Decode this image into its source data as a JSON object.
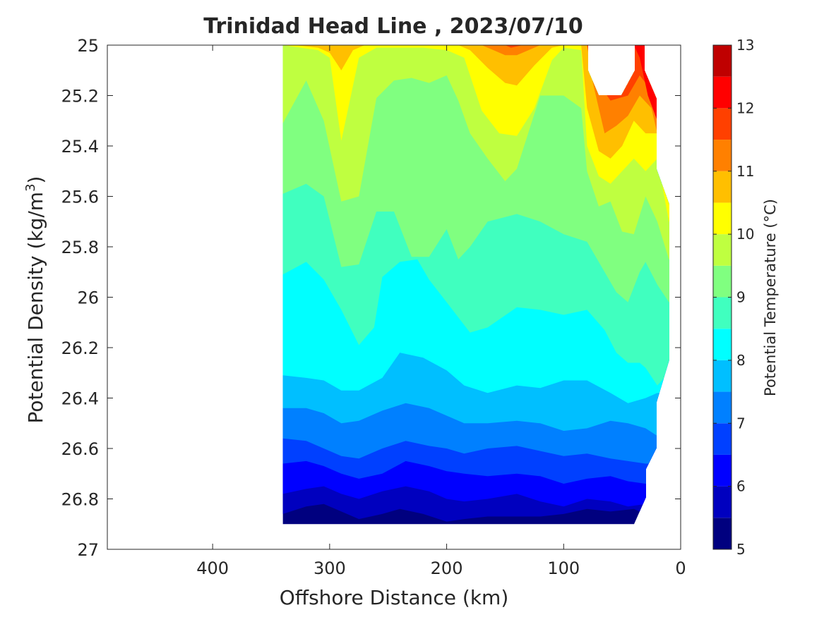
{
  "chart_data": {
    "type": "heatmap",
    "subtype": "filled-contour",
    "title": "Trinidad Head Line , 2023/07/10",
    "xlabel": "Offshore Distance (km)",
    "ylabel_main": "Potential Density (kg/m",
    "ylabel_sup": "3",
    "ylabel_end": ")",
    "xlim": [
      490,
      0
    ],
    "ylim": [
      25,
      27
    ],
    "x_direction": "reversed",
    "y_direction": "reversed (top to bottom)",
    "x_ticks": [
      400,
      300,
      200,
      100,
      0
    ],
    "x_tick_labels": [
      "400",
      "300",
      "200",
      "100",
      "0"
    ],
    "y_ticks": [
      25,
      25.2,
      25.4,
      25.6,
      25.8,
      26,
      26.2,
      26.4,
      26.6,
      26.8,
      27
    ],
    "y_tick_labels": [
      "25",
      "25.2",
      "25.4",
      "25.6",
      "25.8",
      "26",
      "26.2",
      "26.4",
      "26.6",
      "26.8",
      "27"
    ],
    "colorbar": {
      "label": "Potential Temperature (°C)",
      "range": [
        5,
        13
      ],
      "ticks": [
        5,
        6,
        7,
        8,
        9,
        10,
        11,
        12,
        13
      ],
      "tick_labels": [
        "5",
        "6",
        "7",
        "8",
        "9",
        "10",
        "11",
        "12",
        "13"
      ],
      "levels": [
        5,
        5.5,
        6,
        6.5,
        7,
        7.5,
        8,
        8.5,
        9,
        9.5,
        10,
        10.5,
        11,
        11.5,
        12,
        12.5,
        13
      ],
      "colors": [
        "#00007F",
        "#0000BF",
        "#0000FF",
        "#0040FF",
        "#0080FF",
        "#00BFFF",
        "#00FFFF",
        "#40FFBF",
        "#80FF80",
        "#BFFF40",
        "#FFFF00",
        "#FFBF00",
        "#FF8000",
        "#FF4000",
        "#FF0000",
        "#BF0000"
      ]
    },
    "data_extent": {
      "x_range": [
        340,
        10
      ],
      "y_range": [
        25,
        26.9
      ]
    },
    "isotherms": [
      {
        "value": 5.5,
        "points": [
          [
            340,
            26.86
          ],
          [
            320,
            26.83
          ],
          [
            305,
            26.82
          ],
          [
            290,
            26.85
          ],
          [
            275,
            26.88
          ],
          [
            255,
            26.86
          ],
          [
            240,
            26.84
          ],
          [
            220,
            26.86
          ],
          [
            200,
            26.89
          ],
          [
            185,
            26.88
          ],
          [
            165,
            26.87
          ],
          [
            140,
            26.87
          ],
          [
            120,
            26.87
          ],
          [
            100,
            26.86
          ],
          [
            80,
            26.84
          ],
          [
            60,
            26.85
          ],
          [
            40,
            26.84
          ],
          [
            30,
            26.86
          ],
          [
            20,
            26.87
          ],
          [
            10,
            26.88
          ]
        ]
      },
      {
        "value": 6,
        "points": [
          [
            340,
            26.78
          ],
          [
            320,
            26.76
          ],
          [
            305,
            26.75
          ],
          [
            290,
            26.78
          ],
          [
            275,
            26.8
          ],
          [
            255,
            26.77
          ],
          [
            235,
            26.75
          ],
          [
            215,
            26.77
          ],
          [
            200,
            26.8
          ],
          [
            185,
            26.81
          ],
          [
            165,
            26.8
          ],
          [
            140,
            26.78
          ],
          [
            120,
            26.81
          ],
          [
            100,
            26.83
          ],
          [
            80,
            26.8
          ],
          [
            60,
            26.81
          ],
          [
            45,
            26.83
          ],
          [
            30,
            26.82
          ],
          [
            20,
            26.82
          ],
          [
            10,
            26.82
          ]
        ]
      },
      {
        "value": 6.5,
        "points": [
          [
            340,
            26.66
          ],
          [
            320,
            26.65
          ],
          [
            305,
            26.67
          ],
          [
            290,
            26.7
          ],
          [
            275,
            26.72
          ],
          [
            255,
            26.7
          ],
          [
            235,
            26.65
          ],
          [
            215,
            26.67
          ],
          [
            200,
            26.69
          ],
          [
            185,
            26.7
          ],
          [
            165,
            26.71
          ],
          [
            140,
            26.7
          ],
          [
            120,
            26.71
          ],
          [
            100,
            26.74
          ],
          [
            80,
            26.72
          ],
          [
            60,
            26.71
          ],
          [
            45,
            26.73
          ],
          [
            30,
            26.74
          ],
          [
            20,
            26.74
          ],
          [
            10,
            26.74
          ]
        ]
      },
      {
        "value": 7,
        "points": [
          [
            340,
            26.56
          ],
          [
            320,
            26.57
          ],
          [
            305,
            26.6
          ],
          [
            290,
            26.63
          ],
          [
            275,
            26.64
          ],
          [
            255,
            26.6
          ],
          [
            235,
            26.57
          ],
          [
            215,
            26.59
          ],
          [
            200,
            26.6
          ],
          [
            185,
            26.62
          ],
          [
            165,
            26.6
          ],
          [
            140,
            26.59
          ],
          [
            120,
            26.61
          ],
          [
            100,
            26.63
          ],
          [
            80,
            26.62
          ],
          [
            60,
            26.64
          ],
          [
            45,
            26.65
          ],
          [
            30,
            26.66
          ],
          [
            20,
            26.66
          ],
          [
            10,
            26.66
          ]
        ]
      },
      {
        "value": 7.5,
        "points": [
          [
            340,
            26.44
          ],
          [
            320,
            26.44
          ],
          [
            305,
            26.46
          ],
          [
            290,
            26.5
          ],
          [
            275,
            26.49
          ],
          [
            255,
            26.45
          ],
          [
            235,
            26.42
          ],
          [
            215,
            26.44
          ],
          [
            200,
            26.47
          ],
          [
            185,
            26.5
          ],
          [
            165,
            26.5
          ],
          [
            140,
            26.49
          ],
          [
            120,
            26.5
          ],
          [
            100,
            26.53
          ],
          [
            80,
            26.52
          ],
          [
            60,
            26.49
          ],
          [
            45,
            26.5
          ],
          [
            30,
            26.52
          ],
          [
            20,
            26.55
          ],
          [
            10,
            26.55
          ]
        ]
      },
      {
        "value": 8,
        "points": [
          [
            340,
            26.31
          ],
          [
            320,
            26.32
          ],
          [
            305,
            26.33
          ],
          [
            290,
            26.37
          ],
          [
            275,
            26.37
          ],
          [
            255,
            26.32
          ],
          [
            240,
            26.22
          ],
          [
            220,
            26.24
          ],
          [
            200,
            26.29
          ],
          [
            185,
            26.35
          ],
          [
            165,
            26.38
          ],
          [
            140,
            26.35
          ],
          [
            120,
            26.36
          ],
          [
            100,
            26.33
          ],
          [
            80,
            26.33
          ],
          [
            60,
            26.38
          ],
          [
            45,
            26.42
          ],
          [
            30,
            26.4
          ],
          [
            20,
            26.38
          ],
          [
            10,
            26.38
          ]
        ]
      },
      {
        "value": 8.5,
        "points": [
          [
            340,
            25.91
          ],
          [
            320,
            25.86
          ],
          [
            305,
            25.93
          ],
          [
            290,
            26.05
          ],
          [
            275,
            26.19
          ],
          [
            262,
            26.12
          ],
          [
            255,
            25.92
          ],
          [
            240,
            25.86
          ],
          [
            225,
            25.85
          ],
          [
            215,
            25.93
          ],
          [
            200,
            26.02
          ],
          [
            180,
            26.14
          ],
          [
            165,
            26.12
          ],
          [
            140,
            26.04
          ],
          [
            120,
            26.05
          ],
          [
            100,
            26.07
          ],
          [
            80,
            26.05
          ],
          [
            65,
            26.13
          ],
          [
            55,
            26.22
          ],
          [
            45,
            26.26
          ],
          [
            35,
            26.26
          ],
          [
            30,
            26.28
          ],
          [
            20,
            26.35
          ],
          [
            10,
            26.3
          ]
        ]
      },
      {
        "value": 9,
        "points": [
          [
            340,
            25.59
          ],
          [
            320,
            25.55
          ],
          [
            305,
            25.6
          ],
          [
            290,
            25.88
          ],
          [
            275,
            25.87
          ],
          [
            260,
            25.66
          ],
          [
            245,
            25.66
          ],
          [
            230,
            25.84
          ],
          [
            215,
            25.84
          ],
          [
            200,
            25.73
          ],
          [
            190,
            25.85
          ],
          [
            180,
            25.8
          ],
          [
            165,
            25.7
          ],
          [
            140,
            25.67
          ],
          [
            120,
            25.7
          ],
          [
            100,
            25.75
          ],
          [
            80,
            25.78
          ],
          [
            65,
            25.9
          ],
          [
            55,
            25.98
          ],
          [
            45,
            26.02
          ],
          [
            35,
            25.9
          ],
          [
            30,
            25.86
          ],
          [
            20,
            25.95
          ],
          [
            10,
            26.02
          ]
        ]
      },
      {
        "value": 9.5,
        "points": [
          [
            340,
            25.31
          ],
          [
            320,
            25.14
          ],
          [
            305,
            25.3
          ],
          [
            290,
            25.62
          ],
          [
            275,
            25.6
          ],
          [
            260,
            25.21
          ],
          [
            245,
            25.14
          ],
          [
            230,
            25.13
          ],
          [
            215,
            25.15
          ],
          [
            200,
            25.12
          ],
          [
            190,
            25.22
          ],
          [
            180,
            25.35
          ],
          [
            165,
            25.45
          ],
          [
            150,
            25.54
          ],
          [
            140,
            25.49
          ],
          [
            120,
            25.2
          ],
          [
            100,
            25.2
          ],
          [
            85,
            25.25
          ],
          [
            80,
            25.5
          ],
          [
            70,
            25.64
          ],
          [
            60,
            25.62
          ],
          [
            50,
            25.74
          ],
          [
            40,
            25.75
          ],
          [
            30,
            25.6
          ],
          [
            20,
            25.7
          ],
          [
            10,
            25.85
          ]
        ]
      },
      {
        "value": 10,
        "points": [
          [
            340,
            25.0
          ],
          [
            310,
            25.02
          ],
          [
            300,
            25.05
          ],
          [
            290,
            25.38
          ],
          [
            275,
            25.05
          ],
          [
            260,
            25.01
          ],
          [
            220,
            25.01
          ],
          [
            200,
            25.02
          ],
          [
            185,
            25.05
          ],
          [
            170,
            25.26
          ],
          [
            155,
            25.35
          ],
          [
            140,
            25.36
          ],
          [
            125,
            25.25
          ],
          [
            110,
            25.06
          ],
          [
            100,
            25.01
          ],
          [
            85,
            25.02
          ],
          [
            80,
            25.4
          ],
          [
            70,
            25.52
          ],
          [
            60,
            25.55
          ],
          [
            50,
            25.5
          ],
          [
            40,
            25.45
          ],
          [
            30,
            25.5
          ],
          [
            20,
            25.45
          ],
          [
            10,
            25.7
          ]
        ]
      },
      {
        "value": 10.5,
        "points": [
          [
            330,
            25.0
          ],
          [
            310,
            25.01
          ],
          [
            300,
            25.03
          ],
          [
            290,
            25.1
          ],
          [
            280,
            25.02
          ],
          [
            270,
            25.0
          ],
          [
            190,
            25.0
          ],
          [
            180,
            25.02
          ],
          [
            165,
            25.09
          ],
          [
            150,
            25.15
          ],
          [
            140,
            25.16
          ],
          [
            125,
            25.08
          ],
          [
            110,
            25.01
          ],
          [
            100,
            25.0
          ],
          [
            85,
            25.0
          ],
          [
            80,
            25.25
          ],
          [
            70,
            25.42
          ],
          [
            60,
            25.45
          ],
          [
            50,
            25.4
          ],
          [
            40,
            25.3
          ],
          [
            30,
            25.35
          ],
          [
            20,
            25.35
          ],
          [
            10,
            25.6
          ]
        ]
      },
      {
        "value": 11,
        "points": [
          [
            170,
            25.0
          ],
          [
            160,
            25.02
          ],
          [
            150,
            25.04
          ],
          [
            140,
            25.04
          ],
          [
            130,
            25.02
          ],
          [
            120,
            25.0
          ],
          [
            80,
            25.0
          ],
          [
            75,
            25.15
          ],
          [
            65,
            25.35
          ],
          [
            55,
            25.32
          ],
          [
            45,
            25.28
          ],
          [
            35,
            25.2
          ],
          [
            25,
            25.25
          ],
          [
            10,
            25.55
          ]
        ]
      },
      {
        "value": 11.5,
        "points": [
          [
            150,
            25.0
          ],
          [
            145,
            25.01
          ],
          [
            135,
            25.0
          ],
          [
            80,
            25.0
          ],
          [
            75,
            25.12
          ],
          [
            60,
            25.22
          ],
          [
            45,
            25.2
          ],
          [
            35,
            25.12
          ],
          [
            25,
            25.18
          ],
          [
            15,
            25.4
          ]
        ]
      },
      {
        "value": 12,
        "points": [
          [
            40,
            25.0
          ],
          [
            35,
            25.05
          ],
          [
            28,
            25.2
          ],
          [
            20,
            25.3
          ]
        ]
      }
    ]
  }
}
